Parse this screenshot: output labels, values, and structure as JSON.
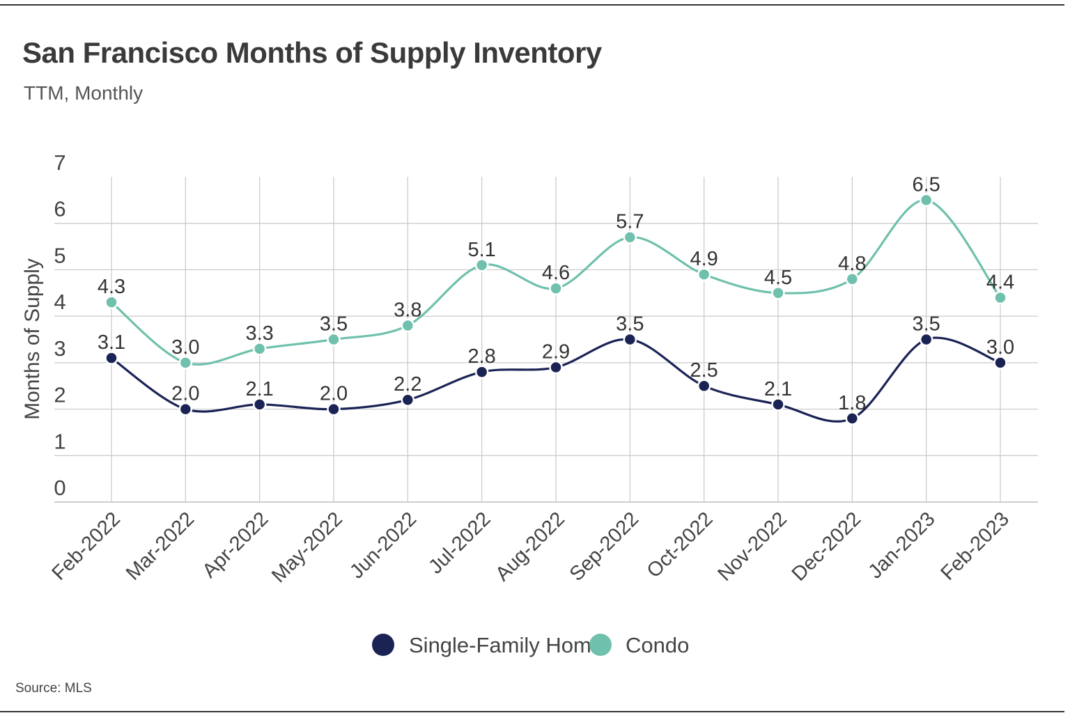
{
  "header": {
    "title": "San Francisco Months of Supply Inventory",
    "subtitle": "TTM, Monthly"
  },
  "footer": {
    "source": "Source:  MLS"
  },
  "colors": {
    "sfh": "#1b2355",
    "condo": "#6fc0ac"
  },
  "chart_data": {
    "type": "line",
    "title": "San Francisco Months of Supply Inventory",
    "subtitle": "TTM, Monthly",
    "xlabel": "",
    "ylabel": "Months of Supply",
    "ylim": [
      0,
      7
    ],
    "yticks": [
      0,
      1,
      2,
      3,
      4,
      5,
      6,
      7
    ],
    "grid": true,
    "legend_position": "bottom-center",
    "categories": [
      "Feb-2022",
      "Mar-2022",
      "Apr-2022",
      "May-2022",
      "Jun-2022",
      "Jul-2022",
      "Aug-2022",
      "Sep-2022",
      "Oct-2022",
      "Nov-2022",
      "Dec-2022",
      "Jan-2023",
      "Feb-2023"
    ],
    "series": [
      {
        "name": "Single-Family Home",
        "color": "#1b2355",
        "values": [
          3.1,
          2.0,
          2.1,
          2.0,
          2.2,
          2.8,
          2.9,
          3.5,
          2.5,
          2.1,
          1.8,
          3.5,
          3.0
        ],
        "labels": [
          "3.1",
          "2.0",
          "2.1",
          "2.0",
          "2.2",
          "2.8",
          "2.9",
          "3.5",
          "2.5",
          "2.1",
          "1.8",
          "3.5",
          "3.0"
        ]
      },
      {
        "name": "Condo",
        "color": "#6fc0ac",
        "values": [
          4.3,
          3.0,
          3.3,
          3.5,
          3.8,
          5.1,
          4.6,
          5.7,
          4.9,
          4.5,
          4.8,
          6.5,
          4.4
        ],
        "labels": [
          "4.3",
          "3.0",
          "3.3",
          "3.5",
          "3.8",
          "5.1",
          "4.6",
          "5.7",
          "4.9",
          "4.5",
          "4.8",
          "6.5",
          "4.4"
        ]
      }
    ]
  }
}
